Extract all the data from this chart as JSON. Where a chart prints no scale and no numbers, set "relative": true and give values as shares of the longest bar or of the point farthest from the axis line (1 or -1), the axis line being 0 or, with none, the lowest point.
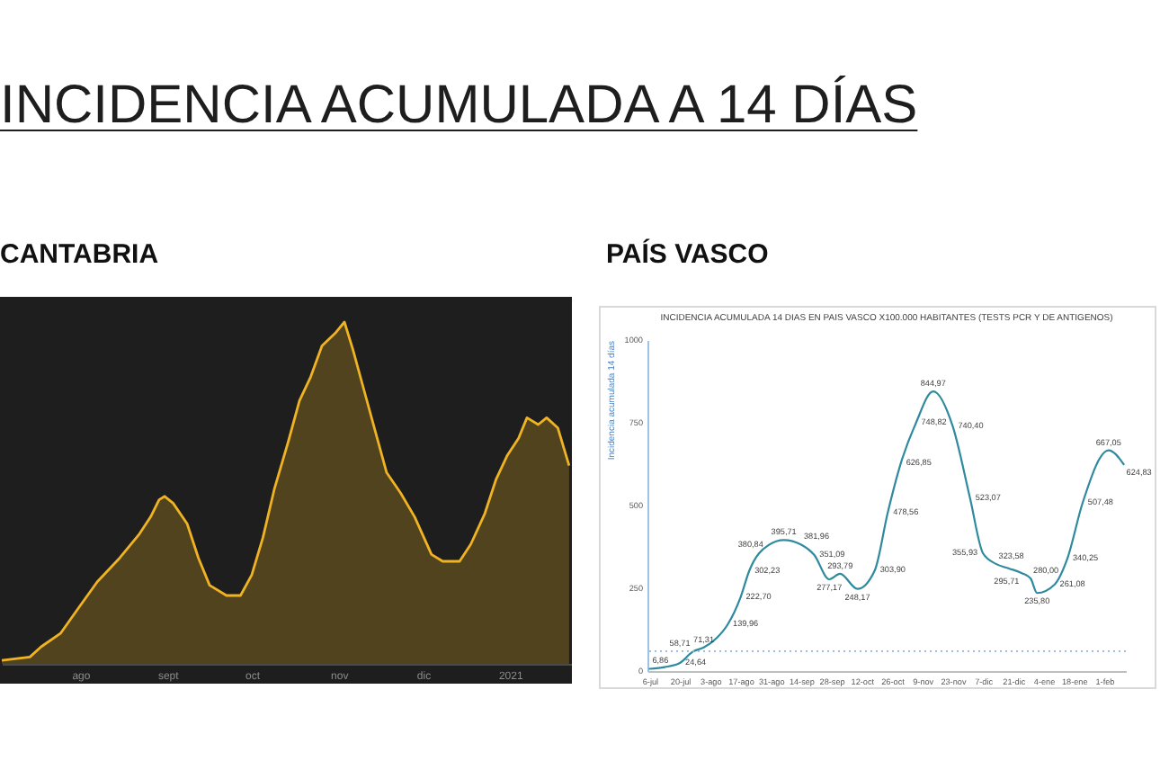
{
  "chart_data": [
    {
      "type": "other",
      "title": "INCIDENCIA ACUMULADA A 14 DÍAS"
    },
    {
      "type": "area",
      "title": "CANTABRIA",
      "relative": true,
      "color": "#f0b323",
      "x": [
        "2020-07-04",
        "2020-07-14",
        "2020-07-18",
        "2020-07-25",
        "2020-07-31",
        "2020-08-07",
        "2020-08-15",
        "2020-08-22",
        "2020-08-26",
        "2020-08-29",
        "2020-08-31",
        "2020-09-03",
        "2020-09-08",
        "2020-09-12",
        "2020-09-16",
        "2020-09-22",
        "2020-09-27",
        "2020-10-01",
        "2020-10-05",
        "2020-10-09",
        "2020-10-14",
        "2020-10-18",
        "2020-10-22",
        "2020-10-26",
        "2020-10-31",
        "2020-11-03",
        "2020-11-06",
        "2020-11-10",
        "2020-11-14",
        "2020-11-18",
        "2020-11-23",
        "2020-11-28",
        "2020-12-04",
        "2020-12-08",
        "2020-12-14",
        "2020-12-18",
        "2020-12-23",
        "2020-12-27",
        "2020-12-31",
        "2021-01-04",
        "2021-01-07",
        "2021-01-11",
        "2021-01-14",
        "2021-01-18",
        "2021-01-22"
      ],
      "values": [
        0.01,
        0.02,
        0.05,
        0.09,
        0.16,
        0.24,
        0.31,
        0.38,
        0.43,
        0.48,
        0.49,
        0.47,
        0.41,
        0.31,
        0.23,
        0.2,
        0.2,
        0.26,
        0.37,
        0.51,
        0.65,
        0.77,
        0.84,
        0.93,
        0.97,
        1,
        0.92,
        0.8,
        0.68,
        0.56,
        0.5,
        0.43,
        0.32,
        0.3,
        0.3,
        0.35,
        0.44,
        0.54,
        0.61,
        0.66,
        0.72,
        0.7,
        0.72,
        0.69,
        0.58
      ],
      "xlim": [
        "2020-07-04",
        "2021-01-23"
      ],
      "xticks": [
        {
          "value": "2020-08-01",
          "label": "ago"
        },
        {
          "value": "2020-09-01",
          "label": "sept"
        },
        {
          "value": "2020-10-01",
          "label": "oct"
        },
        {
          "value": "2020-11-01",
          "label": "nov"
        },
        {
          "value": "2020-12-01",
          "label": "dic"
        },
        {
          "value": "2021-01-01",
          "label": "2021"
        }
      ]
    },
    {
      "type": "line",
      "title": "PAÍS VASCO",
      "subtitle": "INCIDENCIA ACUMULADA 14 DIAS EN PAIS VASCO X100.000 HABITANTES (TESTS PCR Y DE ANTIGENOS)",
      "ylabel": "Incidencia acumulada 14 días",
      "color": "#2f8a9e",
      "x": [
        "2020-07-06",
        "2020-07-13",
        "2020-07-20",
        "2020-07-26",
        "2020-07-31",
        "2020-08-06",
        "2020-08-11",
        "2020-08-17",
        "2020-08-21",
        "2020-08-30",
        "2020-09-06",
        "2020-09-14",
        "2020-09-20",
        "2020-09-27",
        "2020-10-02",
        "2020-10-10",
        "2020-10-18",
        "2020-10-24",
        "2020-10-30",
        "2020-11-06",
        "2020-11-14",
        "2020-11-23",
        "2020-12-01",
        "2020-12-07",
        "2020-12-13",
        "2020-12-19",
        "2020-12-25",
        "2020-12-29",
        "2021-01-01",
        "2021-01-09",
        "2021-01-15",
        "2021-01-22",
        "2021-02-03",
        "2021-02-10"
      ],
      "values": [
        6.86,
        12,
        24.64,
        58.71,
        71.31,
        100,
        139.96,
        222.7,
        302.23,
        380.84,
        395.71,
        381.96,
        351.09,
        277.17,
        293.79,
        248.17,
        303.9,
        478.56,
        626.85,
        748.82,
        844.97,
        740.4,
        523.07,
        355.93,
        323.58,
        310,
        295.71,
        280,
        235.8,
        261.08,
        340.25,
        507.48,
        667.05,
        624.83
      ],
      "value_labels": [
        "6,86",
        null,
        "24,64",
        "58,71",
        "71,31",
        null,
        "139,96",
        "222,70",
        "302,23",
        "380,84",
        "395,71",
        "381,96",
        "351,09",
        "277,17",
        "293,79",
        "248,17",
        "303,90",
        "478,56",
        "626,85",
        "748,82",
        "844,97",
        "740,40",
        "523,07",
        "355,93",
        "323,58",
        null,
        "295,71",
        "280,00",
        "235,80",
        "261,08",
        "340,25",
        "507,48",
        "667,05",
        "624,83"
      ],
      "xlim": [
        "2020-07-05",
        "2021-02-11"
      ],
      "ylim": [
        0,
        1000
      ],
      "yticks": [
        0,
        250,
        500,
        750,
        1000
      ],
      "xticks": [
        {
          "value": "2020-07-06",
          "label": "6-jul"
        },
        {
          "value": "2020-07-20",
          "label": "20-jul"
        },
        {
          "value": "2020-08-03",
          "label": "3-ago"
        },
        {
          "value": "2020-08-17",
          "label": "17-ago"
        },
        {
          "value": "2020-08-31",
          "label": "31-ago"
        },
        {
          "value": "2020-09-14",
          "label": "14-sep"
        },
        {
          "value": "2020-09-28",
          "label": "28-sep"
        },
        {
          "value": "2020-10-12",
          "label": "12-oct"
        },
        {
          "value": "2020-10-26",
          "label": "26-oct"
        },
        {
          "value": "2020-11-09",
          "label": "9-nov"
        },
        {
          "value": "2020-11-23",
          "label": "23-nov"
        },
        {
          "value": "2020-12-07",
          "label": "7-dic"
        },
        {
          "value": "2020-12-21",
          "label": "21-dic"
        },
        {
          "value": "2021-01-04",
          "label": "4-ene"
        },
        {
          "value": "2021-01-18",
          "label": "18-ene"
        },
        {
          "value": "2021-02-01",
          "label": "1-feb"
        }
      ],
      "ref_lines": [
        {
          "axis": "y",
          "value": 60,
          "line_style": "dotted",
          "color": "#8eb4e3"
        }
      ]
    }
  ]
}
